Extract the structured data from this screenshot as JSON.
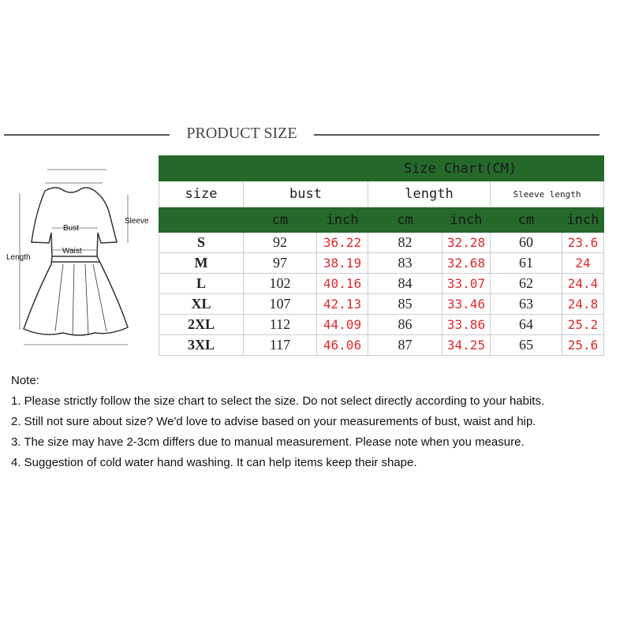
{
  "title": "PRODUCT SIZE",
  "diagram": {
    "labels": {
      "bust": "Bust",
      "waist": "Waist",
      "sleeve": "Sleeve",
      "length": "Length"
    }
  },
  "table": {
    "caption": "Size Chart(CM)",
    "headers": [
      "size",
      "bust",
      "length",
      "Sleeve length"
    ],
    "units": [
      "cm",
      "inch",
      "cm",
      "inch",
      "cm",
      "inch"
    ],
    "rows": [
      [
        "S",
        "92",
        "36.22",
        "82",
        "32.28",
        "60",
        "23.6"
      ],
      [
        "M",
        "97",
        "38.19",
        "83",
        "32.68",
        "61",
        "24"
      ],
      [
        "L",
        "102",
        "40.16",
        "84",
        "33.07",
        "62",
        "24.4"
      ],
      [
        "XL",
        "107",
        "42.13",
        "85",
        "33.46",
        "63",
        "24.8"
      ],
      [
        "2XL",
        "112",
        "44.09",
        "86",
        "33.86",
        "64",
        "25.2"
      ],
      [
        "3XL",
        "117",
        "46.06",
        "87",
        "34.25",
        "65",
        "25.6"
      ]
    ],
    "colors": {
      "header_green": "#24682a",
      "inch_red": "#e0292b"
    }
  },
  "notes": {
    "heading": "Note:",
    "items": [
      "1. Please strictly follow the size chart to select the size. Do not select directly according to your habits.",
      "2. Still not sure about size? We'd love to advise based on your measurements of bust, waist and hip.",
      "3. The size may have 2-3cm differs due to manual measurement. Please note when you measure.",
      "4. Suggestion of cold water hand washing. It can help items keep their shape."
    ]
  }
}
